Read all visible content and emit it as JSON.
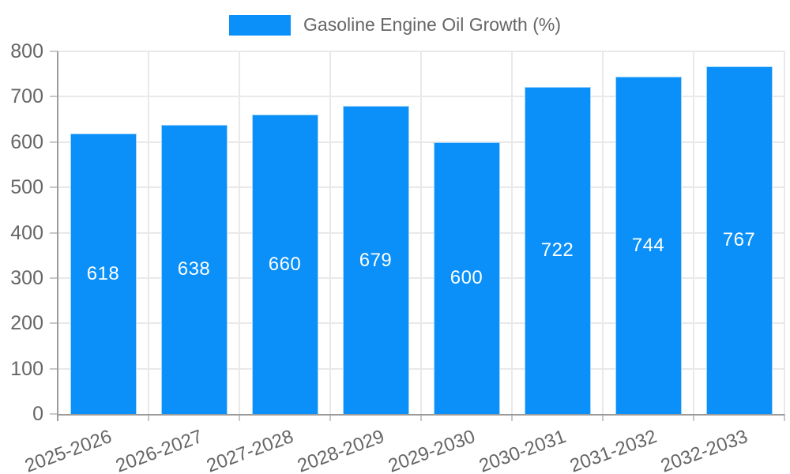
{
  "legend": {
    "label": "Gasoline Engine Oil Growth (%)"
  },
  "colors": {
    "bar_fill": "#0a90f8",
    "bar_border": "#a6d7fd",
    "axis": "#9b9b9b",
    "gridline": "#e9e9e9",
    "tick": "#c8c8c8",
    "label_text": "#666666",
    "bar_label_text": "#ffffff",
    "background": "#ffffff"
  },
  "chart_data": {
    "type": "bar",
    "categories": [
      "2025-2026",
      "2026-2027",
      "2027-2028",
      "2028-2029",
      "2029-2030",
      "2030-2031",
      "2031-2032",
      "2032-2033"
    ],
    "values": [
      618,
      638,
      660,
      679,
      600,
      722,
      744,
      767
    ],
    "legend_entries": [
      "Gasoline Engine Oil Growth (%)"
    ],
    "xlabel": "",
    "ylabel": "",
    "ylim": [
      0,
      800
    ],
    "yticks": [
      0,
      100,
      200,
      300,
      400,
      500,
      600,
      700,
      800
    ],
    "grid": true,
    "legend_position": "top",
    "data_labels": true,
    "x_tick_rotation_deg": -20
  }
}
